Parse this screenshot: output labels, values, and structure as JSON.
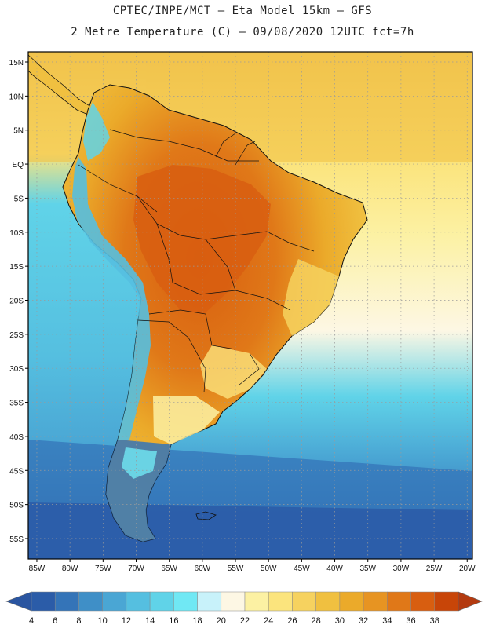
{
  "title": {
    "line1": "CPTEC/INPE/MCT –  Eta Model 15km – GFS",
    "line2": "2 Metre Temperature (C) – 09/08/2020 12UTC fct=7h"
  },
  "axes": {
    "lat_labels": [
      "15N",
      "10N",
      "5N",
      "EQ",
      "5S",
      "10S",
      "15S",
      "20S",
      "25S",
      "30S",
      "35S",
      "40S",
      "45S",
      "50S",
      "55S"
    ],
    "lat_values": [
      15,
      10,
      5,
      0,
      -5,
      -10,
      -15,
      -20,
      -25,
      -30,
      -35,
      -40,
      -45,
      -50,
      -55
    ],
    "lon_labels": [
      "85W",
      "80W",
      "75W",
      "70W",
      "65W",
      "60W",
      "55W",
      "50W",
      "45W",
      "40W",
      "35W",
      "30W",
      "25W",
      "20W"
    ],
    "lon_values": [
      -85,
      -80,
      -75,
      -70,
      -65,
      -60,
      -55,
      -50,
      -45,
      -40,
      -35,
      -30,
      -25,
      -20
    ]
  },
  "colorbar": {
    "labels": [
      "4",
      "6",
      "8",
      "10",
      "12",
      "14",
      "16",
      "18",
      "20",
      "22",
      "24",
      "26",
      "28",
      "30",
      "32",
      "34",
      "36",
      "38"
    ],
    "colors": [
      "#2b5ca8",
      "#3474b8",
      "#3f8fc7",
      "#4aa6d4",
      "#55bfe0",
      "#60d3e8",
      "#70e8f4",
      "#c8f2fa",
      "#fdf7e4",
      "#fcf1a3",
      "#fbe47d",
      "#f6d25f",
      "#f0c040",
      "#ebaa2a",
      "#e79422",
      "#e07818",
      "#d85e10",
      "#c84508"
    ],
    "low_arrow_color": "#2a55a0",
    "high_arrow_color": "#b33a10"
  },
  "colors": {
    "ocean_north": "#f2c85a",
    "ocean_equator": "#fbe47d",
    "ocean_tropic": "#fcf1a3",
    "ocean_cool": "#60d3e8",
    "ocean_mid": "#4aa6d4",
    "ocean_south": "#2b5ca8",
    "land_hot": "#d85e10",
    "land_warm": "#ebaa2a",
    "land_mild": "#f6d25f",
    "andes_cold": "#55bfe0",
    "patagonia": "#3474b8"
  }
}
